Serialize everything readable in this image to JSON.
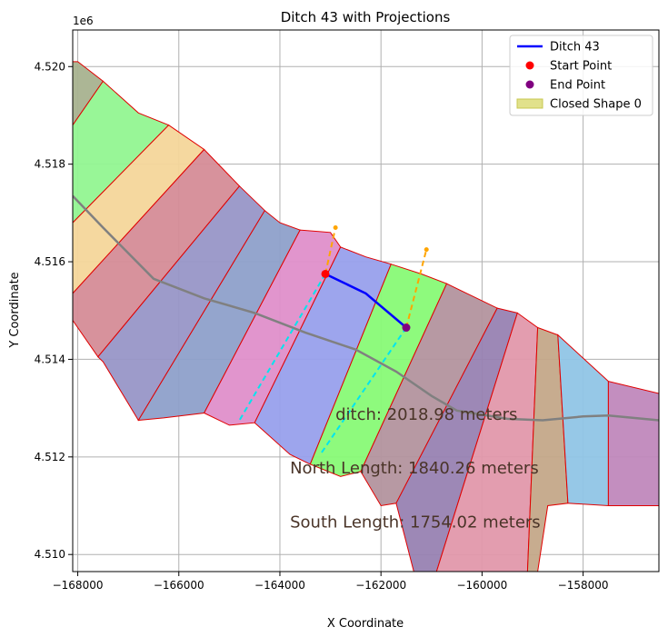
{
  "chart_data": {
    "type": "line",
    "title": "Ditch 43 with Projections",
    "xlabel": "X Coordinate",
    "ylabel": "Y Coordinate",
    "y_offset_label": "1e6",
    "xlim": [
      -168100,
      -156500
    ],
    "ylim": [
      4.50965,
      4.52075
    ],
    "x_ticks": [
      -168000,
      -166000,
      -164000,
      -162000,
      -160000,
      -158000
    ],
    "x_tick_labels": [
      "−168000",
      "−166000",
      "−164000",
      "−162000",
      "−160000",
      "−158000"
    ],
    "y_ticks": [
      4.51,
      4.512,
      4.514,
      4.516,
      4.518,
      4.52
    ],
    "y_tick_labels": [
      "4.510",
      "4.512",
      "4.514",
      "4.516",
      "4.518",
      "4.520"
    ],
    "grid": true,
    "legend_position": "top-right",
    "legend": [
      {
        "label": "Ditch 43",
        "kind": "line",
        "color": "#0000ff"
      },
      {
        "label": "Start Point",
        "kind": "marker",
        "color": "#ff0000"
      },
      {
        "label": "End Point",
        "kind": "marker",
        "color": "#800080"
      },
      {
        "label": "Closed Shape 0",
        "kind": "patch",
        "color": "#d4d45a"
      }
    ],
    "annotations": [
      {
        "text": "ditch: 2018.98 meters",
        "x": -162900,
        "y": 4.51285
      },
      {
        "text": "North Length: 1840.26 meters",
        "x": -163800,
        "y": 4.51175
      },
      {
        "text": "South Length: 1754.02 meters",
        "x": -163800,
        "y": 4.51065
      }
    ],
    "zones": [
      {
        "color": "#a8b28f",
        "points": [
          [
            -168100,
            4.5201
          ],
          [
            -168000,
            4.5201
          ],
          [
            -167500,
            4.5197
          ],
          [
            -168100,
            4.5188
          ]
        ]
      },
      {
        "color": "#92f591",
        "points": [
          [
            -168100,
            4.5188
          ],
          [
            -167500,
            4.5197
          ],
          [
            -166800,
            4.51905
          ],
          [
            -166200,
            4.5188
          ],
          [
            -168100,
            4.5168
          ]
        ]
      },
      {
        "color": "#f4d69a",
        "points": [
          [
            -168100,
            4.5168
          ],
          [
            -166200,
            4.5188
          ],
          [
            -165500,
            4.5183
          ],
          [
            -168100,
            4.51535
          ]
        ]
      },
      {
        "color": "#d58c97",
        "points": [
          [
            -168100,
            4.51535
          ],
          [
            -165500,
            4.5183
          ],
          [
            -164800,
            4.51755
          ],
          [
            -167600,
            4.51405
          ],
          [
            -168100,
            4.5148
          ]
        ]
      },
      {
        "color": "#9896c7",
        "points": [
          [
            -167600,
            4.51405
          ],
          [
            -164800,
            4.51755
          ],
          [
            -164300,
            4.51705
          ],
          [
            -166800,
            4.51275
          ],
          [
            -167500,
            4.51395
          ]
        ]
      },
      {
        "color": "#8ea0ca",
        "points": [
          [
            -166800,
            4.51275
          ],
          [
            -164300,
            4.51705
          ],
          [
            -164000,
            4.5168
          ],
          [
            -163600,
            4.51665
          ],
          [
            -165500,
            4.5129
          ],
          [
            -166300,
            4.5128
          ]
        ]
      },
      {
        "color": "#df8fca",
        "points": [
          [
            -165500,
            4.5129
          ],
          [
            -163600,
            4.51665
          ],
          [
            -163000,
            4.5166
          ],
          [
            -162800,
            4.5163
          ],
          [
            -164500,
            4.5127
          ],
          [
            -165000,
            4.51265
          ]
        ]
      },
      {
        "color": "#98a0ec",
        "points": [
          [
            -164500,
            4.5127
          ],
          [
            -162800,
            4.5163
          ],
          [
            -162300,
            4.5161
          ],
          [
            -161800,
            4.51595
          ],
          [
            -163400,
            4.51185
          ],
          [
            -163800,
            4.51205
          ]
        ]
      },
      {
        "color": "#88fa76",
        "points": [
          [
            -163400,
            4.51185
          ],
          [
            -161800,
            4.51595
          ],
          [
            -161200,
            4.51575
          ],
          [
            -160700,
            4.51555
          ],
          [
            -162400,
            4.5117
          ],
          [
            -162800,
            4.5116
          ]
        ]
      },
      {
        "color": "#b3939e",
        "points": [
          [
            -162400,
            4.5117
          ],
          [
            -160700,
            4.51555
          ],
          [
            -160300,
            4.51535
          ],
          [
            -159700,
            4.51505
          ],
          [
            -161700,
            4.51105
          ],
          [
            -162000,
            4.511
          ]
        ]
      },
      {
        "color": "#9882b2",
        "points": [
          [
            -161700,
            4.51105
          ],
          [
            -159700,
            4.51505
          ],
          [
            -159300,
            4.51495
          ],
          [
            -160900,
            4.50965
          ],
          [
            -161350,
            4.50965
          ]
        ]
      },
      {
        "color": "#e198ab",
        "points": [
          [
            -160900,
            4.50965
          ],
          [
            -159300,
            4.51495
          ],
          [
            -158900,
            4.51465
          ],
          [
            -159100,
            4.50965
          ]
        ]
      },
      {
        "color": "#c4a889",
        "points": [
          [
            -159100,
            4.50965
          ],
          [
            -158900,
            4.51465
          ],
          [
            -158500,
            4.5145
          ],
          [
            -158300,
            4.51105
          ],
          [
            -158700,
            4.511
          ],
          [
            -158900,
            4.50965
          ]
        ]
      },
      {
        "color": "#90c5e6",
        "points": [
          [
            -158300,
            4.51105
          ],
          [
            -158500,
            4.5145
          ],
          [
            -157500,
            4.51355
          ],
          [
            -157500,
            4.511
          ]
        ]
      },
      {
        "color": "#c088bc",
        "points": [
          [
            -157500,
            4.511
          ],
          [
            -157500,
            4.51355
          ],
          [
            -156500,
            4.5133
          ],
          [
            -156500,
            4.511
          ]
        ]
      }
    ],
    "centerline": {
      "color": "#808080",
      "points": [
        [
          -168100,
          4.51735
        ],
        [
          -167500,
          4.5167
        ],
        [
          -166500,
          4.51565
        ],
        [
          -165500,
          4.51525
        ],
        [
          -164500,
          4.51495
        ],
        [
          -163500,
          4.51455
        ],
        [
          -162500,
          4.5142
        ],
        [
          -161700,
          4.51375
        ],
        [
          -161000,
          4.51325
        ],
        [
          -160500,
          4.51295
        ],
        [
          -159500,
          4.51278
        ],
        [
          -158800,
          4.51275
        ],
        [
          -158000,
          4.51283
        ],
        [
          -157500,
          4.51285
        ],
        [
          -156500,
          4.51275
        ]
      ]
    },
    "ditch": {
      "name": "Ditch 43",
      "color": "#0000ff",
      "points": [
        [
          -163100,
          4.51575
        ],
        [
          -162300,
          4.51535
        ],
        [
          -161500,
          4.51465
        ]
      ]
    },
    "start_point": {
      "name": "Start Point",
      "x": -163100,
      "y": 4.51575,
      "color": "#ff0000"
    },
    "end_point": {
      "name": "End Point",
      "x": -161500,
      "y": 4.51465,
      "color": "#800080"
    },
    "north_projection": {
      "color": "#ffa500",
      "points": [
        [
          -163100,
          4.51575
        ],
        [
          -162900,
          4.5167
        ]
      ],
      "points2": [
        [
          -161500,
          4.51465
        ],
        [
          -161100,
          4.51625
        ]
      ]
    },
    "south_projection": {
      "color": "#00e5ee",
      "points": [
        [
          -163100,
          4.51575
        ],
        [
          -164800,
          4.51275
        ]
      ],
      "points2": [
        [
          -161500,
          4.51465
        ],
        [
          -163200,
          4.51205
        ]
      ]
    }
  }
}
